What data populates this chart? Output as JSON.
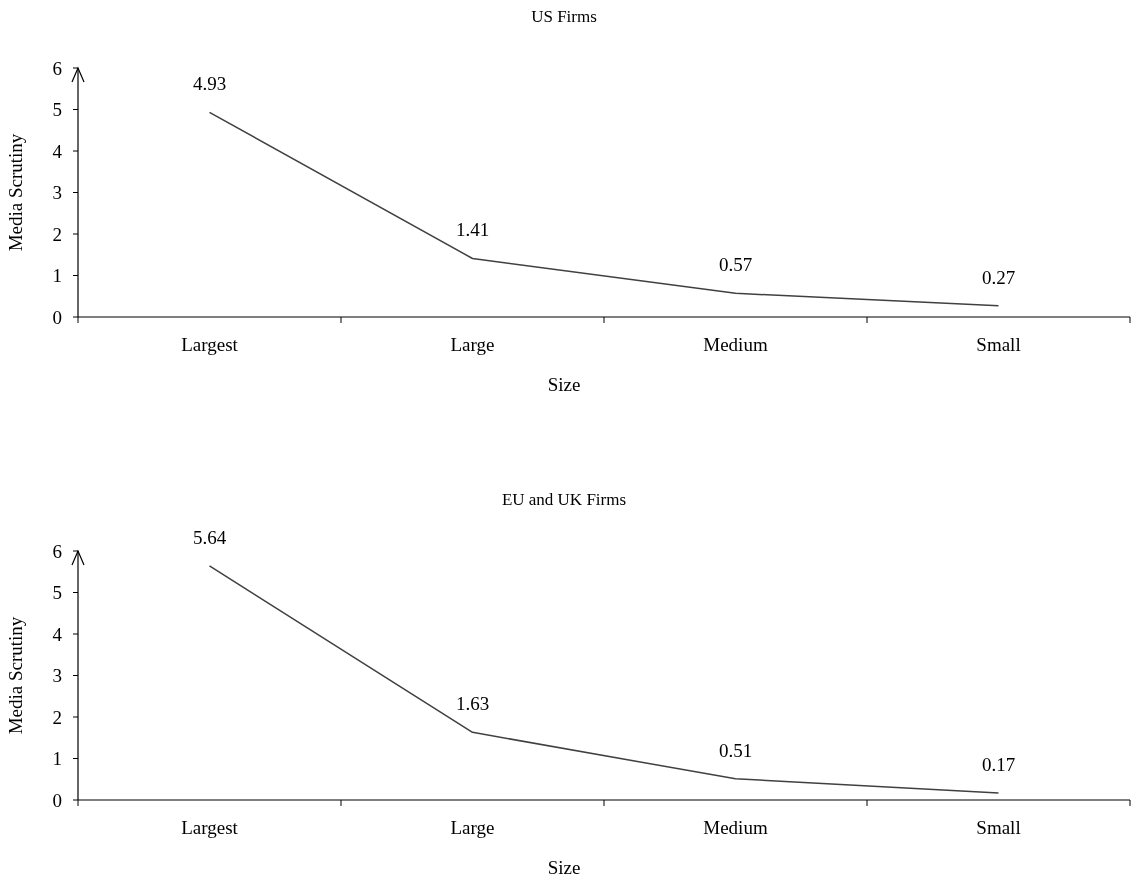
{
  "chart_data": [
    {
      "type": "line",
      "title": "US Firms",
      "xlabel": "Size",
      "ylabel": "Media Scrutiny",
      "categories": [
        "Largest",
        "Large",
        "Medium",
        "Small"
      ],
      "values": [
        4.93,
        1.41,
        0.57,
        0.27
      ],
      "color": "#404040",
      "data_labels": true,
      "ylim": [
        0,
        6
      ],
      "yticks": [
        0,
        1,
        2,
        3,
        4,
        5,
        6
      ]
    },
    {
      "type": "line",
      "title": "EU and UK Firms",
      "xlabel": "Size",
      "ylabel": "Media Scrutiny",
      "categories": [
        "Largest",
        "Large",
        "Medium",
        "Small"
      ],
      "values": [
        5.64,
        1.63,
        0.51,
        0.17
      ],
      "color": "#404040",
      "data_labels": true,
      "ylim": [
        0,
        6
      ],
      "yticks": [
        0,
        1,
        2,
        3,
        4,
        5,
        6
      ]
    }
  ]
}
